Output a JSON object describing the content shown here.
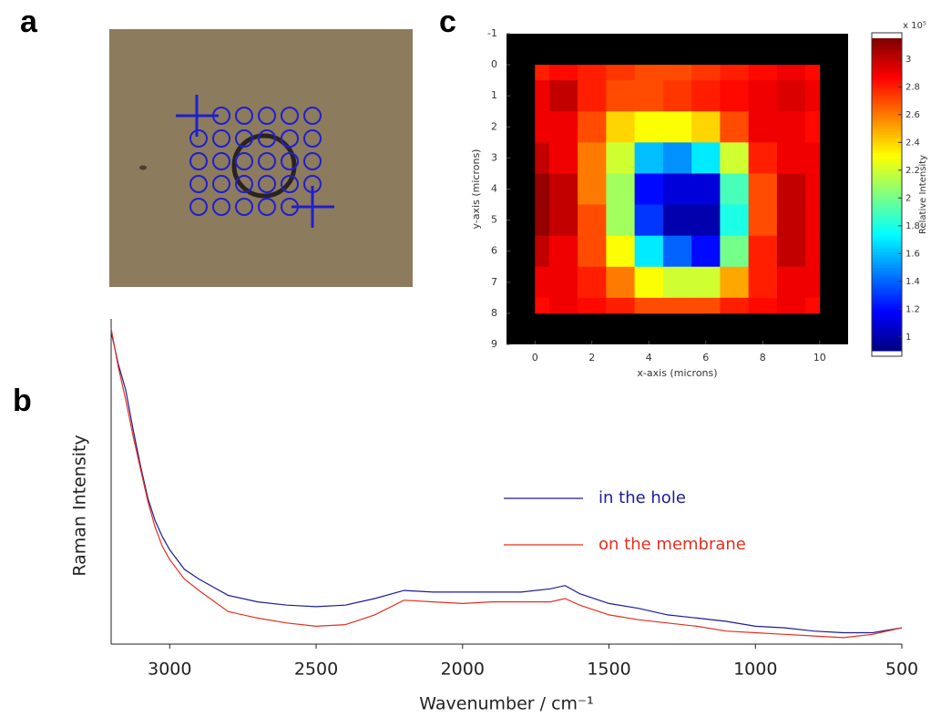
{
  "panel_labels": [
    "a",
    "b",
    "c"
  ],
  "chart_data": [
    {
      "type": "line",
      "xlabel": "Wavenumber / cm⁻¹",
      "ylabel": "Raman Intensity",
      "xlim": [
        3200,
        500
      ],
      "xticks": [
        3000,
        2500,
        2000,
        1500,
        1000,
        500
      ],
      "ylim": [
        0,
        100
      ],
      "x": [
        3200,
        3175,
        3150,
        3125,
        3100,
        3075,
        3050,
        3025,
        3000,
        2950,
        2900,
        2800,
        2700,
        2600,
        2500,
        2400,
        2300,
        2200,
        2100,
        2000,
        1900,
        1800,
        1700,
        1650,
        1600,
        1500,
        1400,
        1300,
        1200,
        1100,
        1000,
        900,
        800,
        700,
        600,
        500
      ],
      "series": [
        {
          "name": "in the hole",
          "color": "#1c1c96",
          "values": [
            96,
            86,
            78,
            66,
            55,
            45,
            38,
            33,
            29,
            23,
            20,
            15,
            13,
            12,
            11.5,
            12,
            14,
            16.5,
            16,
            16,
            16,
            16,
            17,
            18,
            15.5,
            12.5,
            11,
            9,
            8,
            7,
            5.5,
            5,
            4,
            3.5,
            3.5,
            5
          ]
        },
        {
          "name": "on the membrane",
          "color": "#e2301e",
          "values": [
            97,
            85,
            75,
            64,
            54,
            44,
            36,
            30,
            26,
            20,
            16.5,
            10,
            8,
            6.5,
            5.5,
            6,
            9,
            13.5,
            13,
            12.5,
            13,
            13,
            13,
            14,
            12,
            9,
            7.5,
            6.5,
            5.5,
            4,
            3.5,
            3,
            2.5,
            2,
            3,
            5
          ]
        }
      ]
    },
    {
      "type": "heatmap",
      "xlabel": "x-axis (microns)",
      "ylabel": "y-axis (microns)",
      "xlim": [
        -1,
        11
      ],
      "xticks": [
        0,
        2,
        4,
        6,
        8,
        10
      ],
      "ylim": [
        9,
        -1
      ],
      "yticks": [
        -1,
        0,
        1,
        2,
        3,
        4,
        5,
        6,
        7,
        8,
        9
      ],
      "colormap": "jet",
      "clim": [
        0.9,
        3.15
      ],
      "colorbar_ticks": [
        1,
        1.2,
        1.4,
        1.6,
        1.8,
        2,
        2.2,
        2.4,
        2.6,
        2.8,
        3
      ],
      "colorbar_label": "Relative Intensity",
      "colorbar_exponent": "x 10⁵",
      "x": [
        0,
        1,
        2,
        3,
        4,
        5,
        6,
        7,
        8,
        9,
        10
      ],
      "y": [
        0,
        1,
        2,
        3,
        4,
        5,
        6,
        7,
        8
      ],
      "z": [
        [
          2.8,
          2.85,
          2.8,
          2.75,
          2.7,
          2.7,
          2.75,
          2.8,
          2.85,
          2.9,
          2.85
        ],
        [
          2.9,
          3.0,
          2.8,
          2.7,
          2.7,
          2.75,
          2.8,
          2.85,
          2.9,
          2.95,
          2.9
        ],
        [
          2.9,
          2.9,
          2.7,
          2.4,
          2.3,
          2.3,
          2.4,
          2.7,
          2.9,
          2.9,
          2.85
        ],
        [
          3.0,
          2.9,
          2.6,
          2.2,
          1.6,
          1.5,
          1.7,
          2.2,
          2.8,
          2.9,
          2.9
        ],
        [
          3.1,
          3.0,
          2.6,
          2.1,
          1.2,
          1.1,
          1.1,
          1.9,
          2.7,
          3.0,
          2.9
        ],
        [
          3.1,
          3.0,
          2.7,
          2.1,
          1.3,
          1.0,
          1.0,
          1.8,
          2.7,
          3.0,
          2.9
        ],
        [
          3.0,
          2.9,
          2.7,
          2.3,
          1.7,
          1.4,
          1.2,
          2.0,
          2.8,
          3.0,
          2.9
        ],
        [
          2.9,
          2.9,
          2.8,
          2.6,
          2.3,
          2.2,
          2.2,
          2.5,
          2.8,
          2.9,
          2.9
        ],
        [
          2.85,
          2.9,
          2.85,
          2.8,
          2.7,
          2.7,
          2.7,
          2.8,
          2.85,
          2.9,
          2.85
        ]
      ]
    }
  ]
}
